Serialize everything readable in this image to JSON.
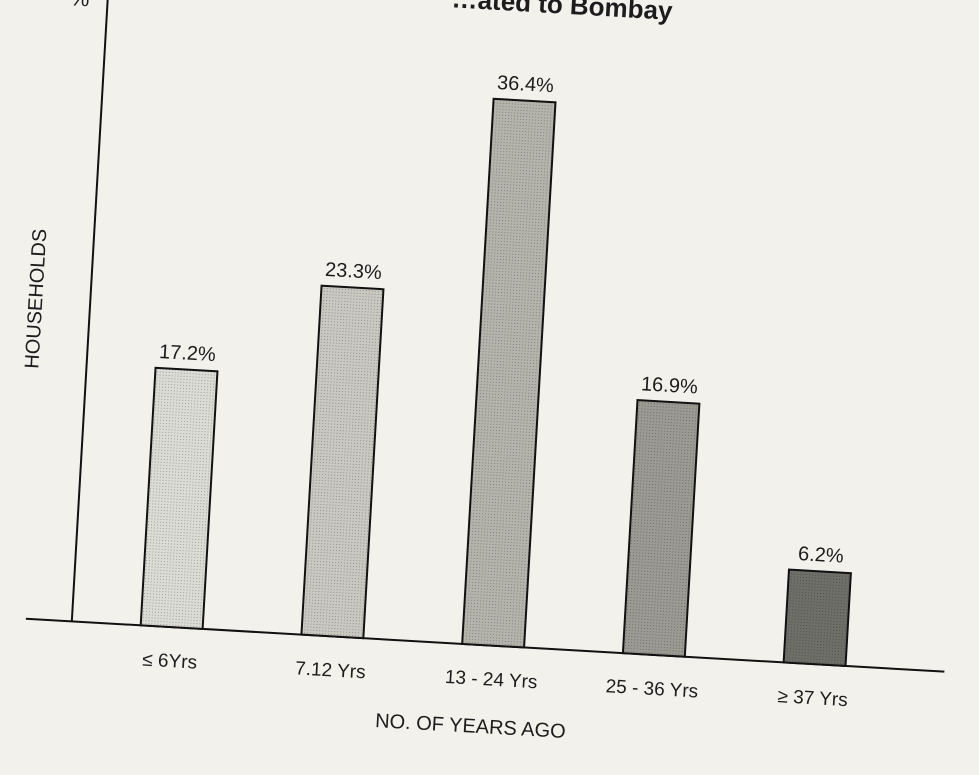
{
  "chart_data": {
    "type": "bar",
    "title": "…ated to Bombay",
    "ylabel": "HOUSEHOLDS",
    "yunit": "%",
    "xlabel": "NO. OF YEARS AGO",
    "categories": [
      "≤ 6Yrs",
      "7.12 Yrs",
      "13 - 24 Yrs",
      "25 - 36 Yrs",
      "≥ 37 Yrs"
    ],
    "values": [
      17.2,
      23.3,
      36.4,
      16.9,
      6.2
    ],
    "value_labels": [
      "17.2%",
      "23.3%",
      "36.4%",
      "16.9%",
      "6.2%"
    ],
    "ylim": [
      0,
      40
    ],
    "grid": false,
    "bar_fills": [
      "#dcdcd6",
      "#c9c9c2",
      "#b4b4ac",
      "#9b9b94",
      "#6f6f6a"
    ]
  }
}
